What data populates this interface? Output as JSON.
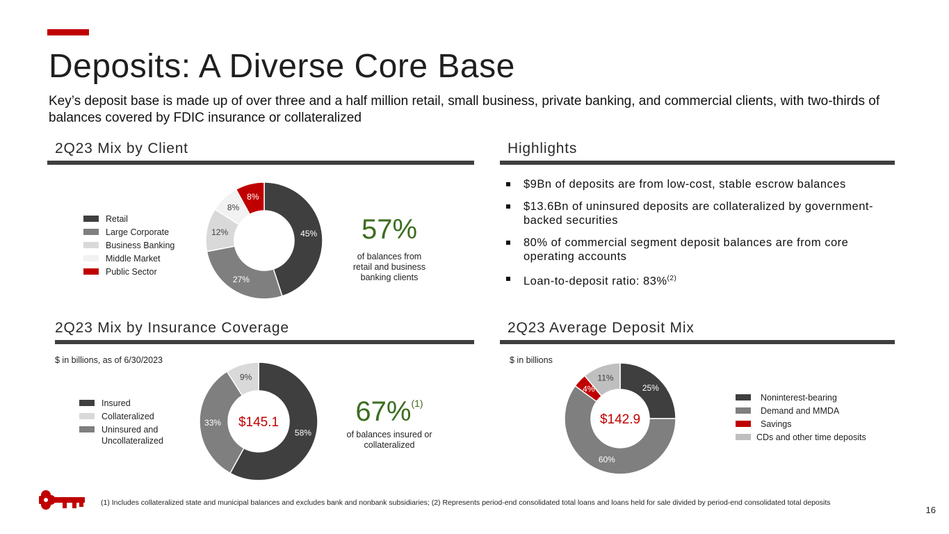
{
  "brand": {
    "accent": "#c00000",
    "dark": "#3f3f3f"
  },
  "title": "Deposits: A Diverse Core Base",
  "subtitle": "Key’s deposit base is made up of over three and a half million retail, small business, private banking, and commercial clients, with two-thirds of balances covered by FDIC insurance or collateralized",
  "client_mix": {
    "section_title": "2Q23 Mix by Client",
    "stat_value": "57%",
    "stat_caption": "of balances from retail and business banking clients"
  },
  "highlights": {
    "section_title": "Highlights",
    "items": [
      "$9Bn of deposits are from low-cost, stable escrow balances",
      "$13.6Bn of uninsured deposits are collateralized by government-backed securities",
      "80% of commercial segment deposit balances are from core operating accounts"
    ],
    "last_item": "Loan-to-deposit ratio: 83%",
    "last_item_sup": "(2)"
  },
  "insurance_mix": {
    "section_title": "2Q23 Mix by Insurance Coverage",
    "note": "$ in billions, as of 6/30/2023",
    "stat_value": "67%",
    "stat_sup": "(1)",
    "stat_caption": "of balances insured or collateralized"
  },
  "deposit_mix": {
    "section_title": "2Q23 Average Deposit Mix",
    "note": "$ in billions"
  },
  "chart_data": [
    {
      "type": "pie",
      "title": "2Q23 Mix by Client",
      "center_label": "",
      "categories": [
        "Retail",
        "Large Corporate",
        "Business Banking",
        "Middle Market",
        "Public Sector"
      ],
      "values": [
        45,
        27,
        12,
        8,
        8
      ],
      "labels": [
        "45%",
        "27%",
        "12%",
        "8%",
        "8%"
      ],
      "colors": [
        "#3f3f3f",
        "#7f7f7f",
        "#d9d9d9",
        "#f2f2f2",
        "#c00000"
      ],
      "label_colors": [
        "#ffffff",
        "#ffffff",
        "#3f3f3f",
        "#3f3f3f",
        "#ffffff"
      ],
      "legend": "left"
    },
    {
      "type": "pie",
      "title": "2Q23 Mix by Insurance Coverage",
      "center_label": "$145.1",
      "categories": [
        "Insured",
        "Uninsured and Uncollateralized",
        "Collateralized"
      ],
      "values": [
        58,
        33,
        9
      ],
      "labels": [
        "58%",
        "33%",
        "9%"
      ],
      "colors": [
        "#3f3f3f",
        "#7f7f7f",
        "#d9d9d9"
      ],
      "label_colors": [
        "#ffffff",
        "#ffffff",
        "#3f3f3f"
      ],
      "legend_order": [
        "Insured",
        "Collateralized",
        "Uninsured and Uncollateralized"
      ],
      "legend_colors": [
        "#3f3f3f",
        "#d9d9d9",
        "#7f7f7f"
      ],
      "legend": "left"
    },
    {
      "type": "pie",
      "title": "2Q23 Average Deposit Mix",
      "center_label": "$142.9",
      "categories": [
        "Noninterest-bearing",
        "Demand and MMDA",
        "Savings",
        "CDs and other time deposits"
      ],
      "values": [
        25,
        60,
        4,
        11
      ],
      "labels": [
        "25%",
        "60%",
        "4%",
        "11%"
      ],
      "colors": [
        "#3f3f3f",
        "#7f7f7f",
        "#c00000",
        "#bfbfbf"
      ],
      "label_colors": [
        "#ffffff",
        "#ffffff",
        "#ffffff",
        "#3f3f3f"
      ],
      "legend": "right"
    }
  ],
  "legend_labels": {
    "client": [
      "Retail",
      "Large Corporate",
      "Business Banking",
      "Middle Market",
      "Public Sector"
    ],
    "insurance": [
      "Insured",
      "Collateralized",
      "Uninsured and Uncollateralized"
    ],
    "deposit": [
      "Noninterest-bearing",
      "Demand and MMDA",
      "Savings",
      "CDs and other time deposits"
    ]
  },
  "footnote": "(1) Includes collateralized state and municipal balances and excludes bank and nonbank subsidiaries; (2) Represents period-end consolidated total loans and loans held for sale divided by period-end consolidated total deposits",
  "page_number": "16",
  "logo": {
    "icon": "key-logo-icon"
  }
}
